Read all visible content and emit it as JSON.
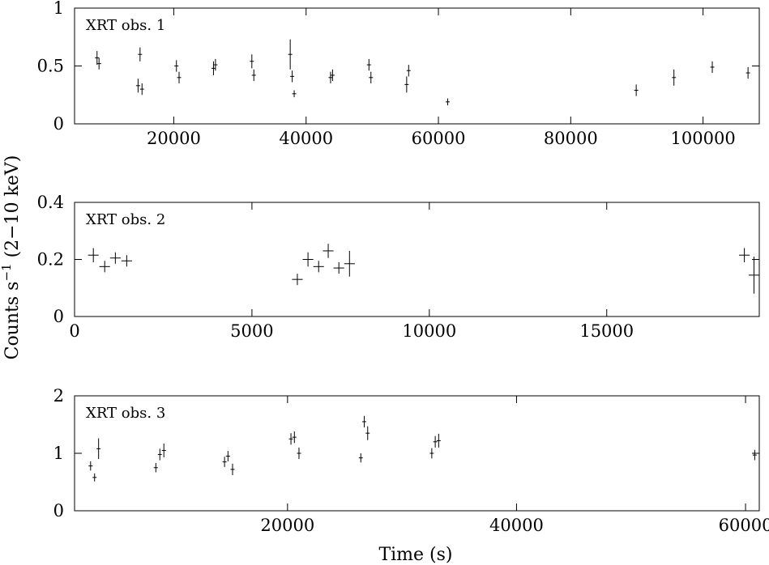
{
  "ylabel_text": "Counts s",
  "ylabel_sup": "−1",
  "ylabel_tail": " (2−10 keV)",
  "xlabel": "Time (s)",
  "chart_data": [
    {
      "type": "scatter",
      "title": "XRT obs. 1",
      "xlabel": "",
      "ylabel": "Counts s−1 (2−10 keV)",
      "xlim": [
        5000,
        108500
      ],
      "ylim": [
        0,
        1
      ],
      "xticks": [
        20000,
        40000,
        60000,
        80000,
        100000
      ],
      "yticks": [
        0,
        0.5,
        1
      ],
      "yticklabels": [
        "0",
        "0.5",
        "1"
      ],
      "grid": false,
      "points": [
        {
          "x": 8400,
          "y": 0.57,
          "xerr": 120,
          "yerr": 0.06
        },
        {
          "x": 8700,
          "y": 0.52,
          "xerr": 120,
          "yerr": 0.05
        },
        {
          "x": 14600,
          "y": 0.33,
          "xerr": 120,
          "yerr": 0.06
        },
        {
          "x": 14900,
          "y": 0.6,
          "xerr": 120,
          "yerr": 0.06
        },
        {
          "x": 15200,
          "y": 0.3,
          "xerr": 120,
          "yerr": 0.05
        },
        {
          "x": 20400,
          "y": 0.5,
          "xerr": 120,
          "yerr": 0.05
        },
        {
          "x": 20800,
          "y": 0.4,
          "xerr": 120,
          "yerr": 0.05
        },
        {
          "x": 26000,
          "y": 0.48,
          "xerr": 120,
          "yerr": 0.06
        },
        {
          "x": 26300,
          "y": 0.51,
          "xerr": 120,
          "yerr": 0.05
        },
        {
          "x": 31800,
          "y": 0.54,
          "xerr": 120,
          "yerr": 0.06
        },
        {
          "x": 32100,
          "y": 0.42,
          "xerr": 120,
          "yerr": 0.05
        },
        {
          "x": 37600,
          "y": 0.6,
          "xerr": 120,
          "yerr": 0.13
        },
        {
          "x": 37900,
          "y": 0.41,
          "xerr": 120,
          "yerr": 0.05
        },
        {
          "x": 38200,
          "y": 0.26,
          "xerr": 120,
          "yerr": 0.03
        },
        {
          "x": 43700,
          "y": 0.4,
          "xerr": 120,
          "yerr": 0.05
        },
        {
          "x": 44000,
          "y": 0.42,
          "xerr": 120,
          "yerr": 0.05
        },
        {
          "x": 49500,
          "y": 0.51,
          "xerr": 120,
          "yerr": 0.05
        },
        {
          "x": 49800,
          "y": 0.4,
          "xerr": 120,
          "yerr": 0.05
        },
        {
          "x": 55200,
          "y": 0.34,
          "xerr": 120,
          "yerr": 0.07
        },
        {
          "x": 55500,
          "y": 0.46,
          "xerr": 120,
          "yerr": 0.05
        },
        {
          "x": 61400,
          "y": 0.19,
          "xerr": 120,
          "yerr": 0.03
        },
        {
          "x": 89900,
          "y": 0.29,
          "xerr": 120,
          "yerr": 0.05
        },
        {
          "x": 95600,
          "y": 0.4,
          "xerr": 120,
          "yerr": 0.07
        },
        {
          "x": 101400,
          "y": 0.49,
          "xerr": 120,
          "yerr": 0.05
        },
        {
          "x": 106800,
          "y": 0.44,
          "xerr": 120,
          "yerr": 0.05
        }
      ]
    },
    {
      "type": "scatter",
      "title": "XRT obs. 2",
      "xlabel": "",
      "ylabel": "Counts s−1 (2−10 keV)",
      "xlim": [
        0,
        19300
      ],
      "ylim": [
        0,
        0.4
      ],
      "xticks": [
        0,
        5000,
        10000,
        15000
      ],
      "yticks": [
        0,
        0.2,
        0.4
      ],
      "yticklabels": [
        "0",
        "0.2",
        "0.4"
      ],
      "grid": false,
      "points": [
        {
          "x": 530,
          "y": 0.215,
          "xerr": 150,
          "yerr": 0.025
        },
        {
          "x": 850,
          "y": 0.175,
          "xerr": 150,
          "yerr": 0.02
        },
        {
          "x": 1150,
          "y": 0.205,
          "xerr": 150,
          "yerr": 0.02
        },
        {
          "x": 1470,
          "y": 0.195,
          "xerr": 150,
          "yerr": 0.02
        },
        {
          "x": 6280,
          "y": 0.13,
          "xerr": 150,
          "yerr": 0.02
        },
        {
          "x": 6580,
          "y": 0.2,
          "xerr": 150,
          "yerr": 0.025
        },
        {
          "x": 6880,
          "y": 0.175,
          "xerr": 150,
          "yerr": 0.02
        },
        {
          "x": 7150,
          "y": 0.23,
          "xerr": 150,
          "yerr": 0.025
        },
        {
          "x": 7450,
          "y": 0.17,
          "xerr": 150,
          "yerr": 0.02
        },
        {
          "x": 7750,
          "y": 0.185,
          "xerr": 150,
          "yerr": 0.045
        },
        {
          "x": 18880,
          "y": 0.215,
          "xerr": 150,
          "yerr": 0.025
        },
        {
          "x": 19150,
          "y": 0.145,
          "xerr": 150,
          "yerr": 0.065
        }
      ]
    },
    {
      "type": "scatter",
      "title": "XRT obs. 3",
      "xlabel": "Time (s)",
      "ylabel": "Counts s−1 (2−10 keV)",
      "xlim": [
        1400,
        61200
      ],
      "ylim": [
        0,
        2
      ],
      "xticks": [
        20000,
        40000,
        60000
      ],
      "yticks": [
        0,
        1,
        2
      ],
      "yticklabels": [
        "0",
        "1",
        "2"
      ],
      "grid": false,
      "points": [
        {
          "x": 2800,
          "y": 0.78,
          "xerr": 80,
          "yerr": 0.08
        },
        {
          "x": 3150,
          "y": 0.58,
          "xerr": 80,
          "yerr": 0.07
        },
        {
          "x": 3500,
          "y": 1.08,
          "xerr": 80,
          "yerr": 0.18
        },
        {
          "x": 8500,
          "y": 0.75,
          "xerr": 80,
          "yerr": 0.08
        },
        {
          "x": 8850,
          "y": 0.98,
          "xerr": 80,
          "yerr": 0.1
        },
        {
          "x": 9200,
          "y": 1.05,
          "xerr": 80,
          "yerr": 0.12
        },
        {
          "x": 14500,
          "y": 0.85,
          "xerr": 80,
          "yerr": 0.09
        },
        {
          "x": 14800,
          "y": 0.95,
          "xerr": 80,
          "yerr": 0.09
        },
        {
          "x": 15200,
          "y": 0.72,
          "xerr": 80,
          "yerr": 0.1
        },
        {
          "x": 20300,
          "y": 1.25,
          "xerr": 80,
          "yerr": 0.1
        },
        {
          "x": 20600,
          "y": 1.28,
          "xerr": 80,
          "yerr": 0.1
        },
        {
          "x": 21000,
          "y": 1.0,
          "xerr": 80,
          "yerr": 0.1
        },
        {
          "x": 26400,
          "y": 0.92,
          "xerr": 80,
          "yerr": 0.08
        },
        {
          "x": 26700,
          "y": 1.55,
          "xerr": 80,
          "yerr": 0.1
        },
        {
          "x": 27000,
          "y": 1.35,
          "xerr": 80,
          "yerr": 0.12
        },
        {
          "x": 32600,
          "y": 1.0,
          "xerr": 80,
          "yerr": 0.09
        },
        {
          "x": 32900,
          "y": 1.2,
          "xerr": 80,
          "yerr": 0.1
        },
        {
          "x": 33200,
          "y": 1.22,
          "xerr": 80,
          "yerr": 0.12
        },
        {
          "x": 60800,
          "y": 0.97,
          "xerr": 80,
          "yerr": 0.09
        }
      ]
    }
  ]
}
